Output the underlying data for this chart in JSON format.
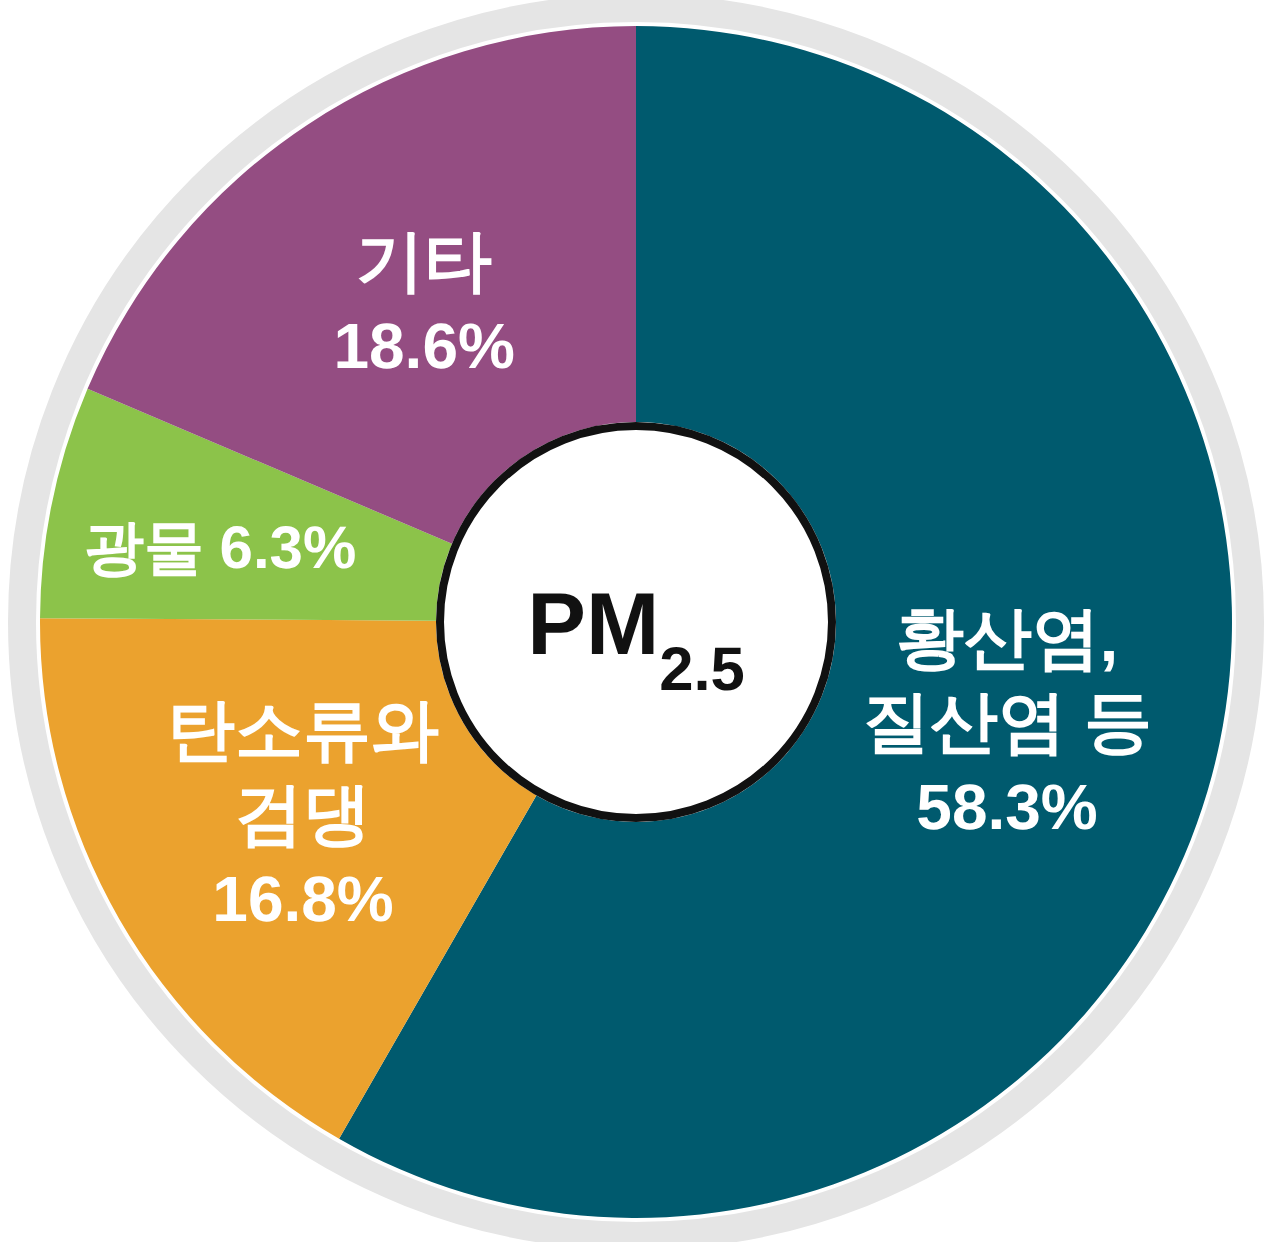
{
  "chart_data": {
    "type": "donut",
    "title": "PM$_{2.5}$",
    "categories": [
      "황산염, 질산염 등",
      "탄소류와 검댕",
      "광물",
      "기타"
    ],
    "values": [
      58.3,
      16.8,
      6.3,
      18.6
    ],
    "colors": [
      "#005a6e",
      "#eba22e",
      "#8cc34a",
      "#944d82"
    ],
    "value_labels": [
      "58.3%",
      "16.8%",
      "6.3%",
      "18.6%"
    ]
  }
}
